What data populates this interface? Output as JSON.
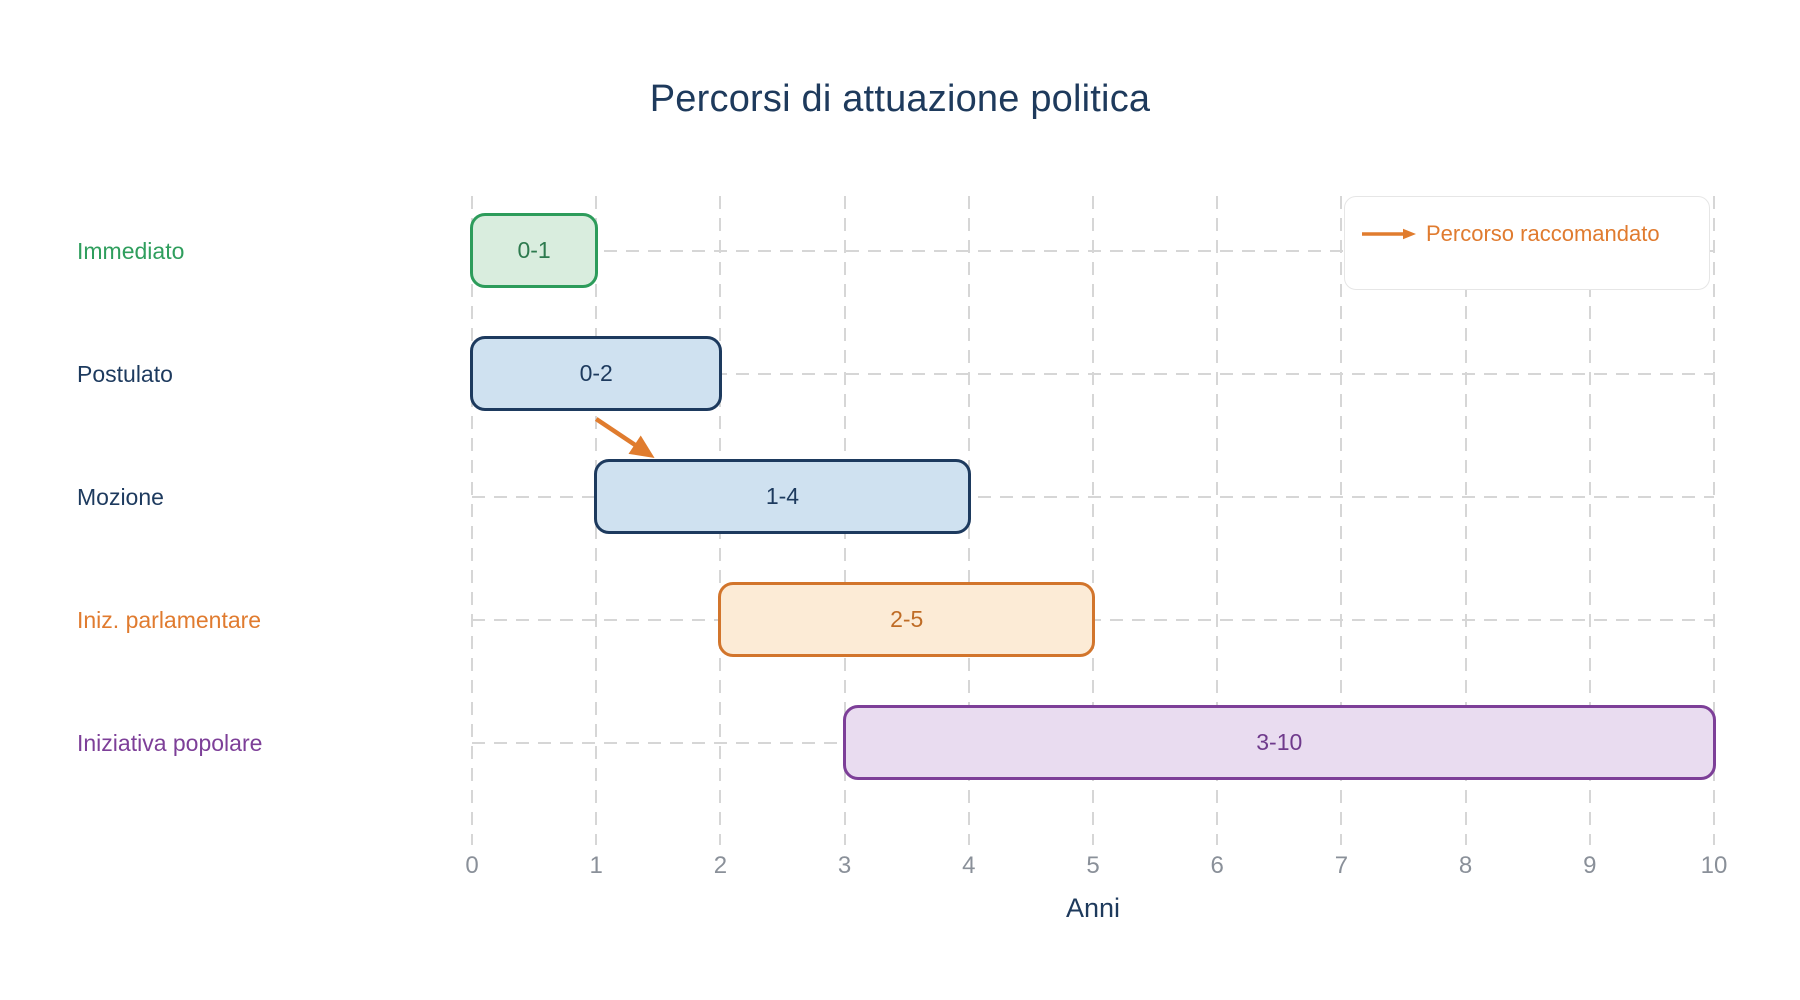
{
  "chart_data": {
    "type": "gantt",
    "title": "Percorsi di attuazione politica",
    "xlabel": "Anni",
    "xlim": [
      0,
      10
    ],
    "xticks": [
      0,
      1,
      2,
      3,
      4,
      5,
      6,
      7,
      8,
      9,
      10
    ],
    "grid": "dashed",
    "rows": [
      {
        "label": "Immediato",
        "start": 0,
        "end": 1,
        "bar_label": "0-1",
        "color": "green"
      },
      {
        "label": "Postulato",
        "start": 0,
        "end": 2,
        "bar_label": "0-2",
        "color": "blue"
      },
      {
        "label": "Mozione",
        "start": 1,
        "end": 4,
        "bar_label": "1-4",
        "color": "blue"
      },
      {
        "label": "Iniz. parlamentare",
        "start": 2,
        "end": 5,
        "bar_label": "2-5",
        "color": "orange"
      },
      {
        "label": "Iniziativa popolare",
        "start": 3,
        "end": 10,
        "bar_label": "3-10",
        "color": "purple"
      }
    ],
    "connector": {
      "from_row": "Postulato",
      "to_row": "Mozione",
      "from_year": 1.0,
      "to_year": 1.47
    },
    "legend": {
      "label": "Percorso raccomandato",
      "position": "top-right"
    },
    "palette": {
      "green": {
        "fill": "#d9edde",
        "border": "#2d9c5b",
        "text": "#2d7a4e",
        "label": "#2f9e5d"
      },
      "blue": {
        "fill": "#cfe1f0",
        "border": "#1d3a5e",
        "text": "#1d3a5e",
        "label": "#1d3a5e"
      },
      "orange": {
        "fill": "#fcebd6",
        "border": "#d2752c",
        "text": "#bf6c26",
        "label": "#e07b2f"
      },
      "purple": {
        "fill": "#e9dcf0",
        "border": "#7d3f98",
        "text": "#6f3a8c",
        "label": "#7d3f98"
      }
    },
    "colors": {
      "title": "#1e3a5c",
      "axis_label": "#1e3a5c",
      "tick": "#8a9099",
      "grid": "#d6d6d6",
      "arrow": "#e07c2e",
      "legend_text": "#e07b2f",
      "legend_border": "#e6e6e6"
    }
  }
}
